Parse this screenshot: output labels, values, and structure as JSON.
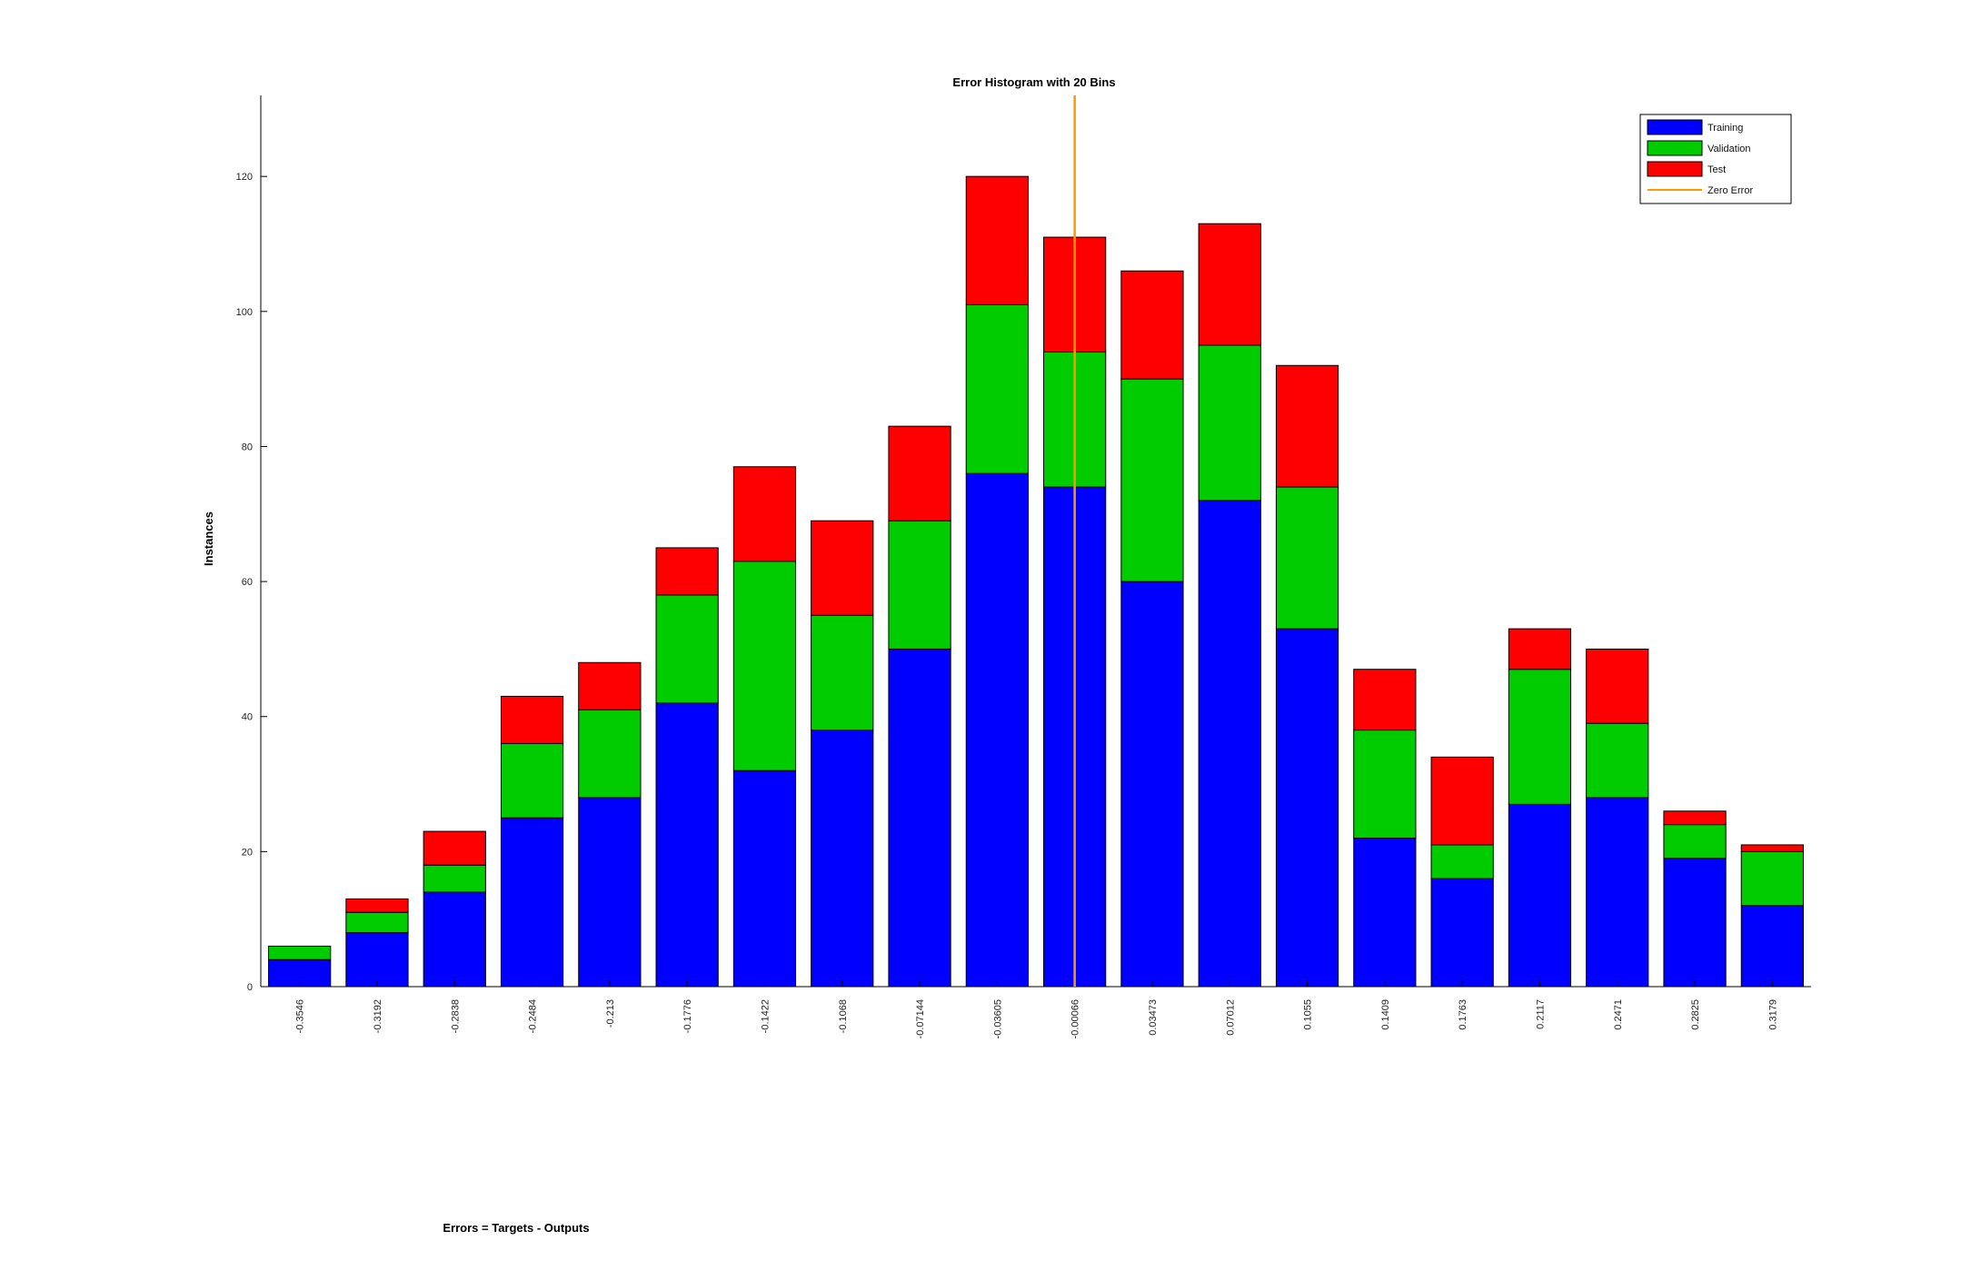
{
  "chart_data": {
    "type": "bar",
    "stacked": true,
    "title": "Error Histogram with 20 Bins",
    "xlabel": "Errors = Targets - Outputs",
    "ylabel": "Instances",
    "ylim": [
      0,
      132
    ],
    "yticks": [
      0,
      20,
      40,
      60,
      80,
      100,
      120
    ],
    "categories": [
      "-0.3546",
      "-0.3192",
      "-0.2838",
      "-0.2484",
      "-0.213",
      "-0.1776",
      "-0.1422",
      "-0.1068",
      "-0.07144",
      "-0.03605",
      "-0.00066",
      "0.03473",
      "0.07012",
      "0.1055",
      "0.1409",
      "0.1763",
      "0.2117",
      "0.2471",
      "0.2825",
      "0.3179"
    ],
    "series": [
      {
        "name": "Training",
        "color": "#0000ff",
        "values": [
          4,
          8,
          14,
          25,
          28,
          42,
          32,
          38,
          50,
          76,
          74,
          60,
          72,
          53,
          22,
          16,
          27,
          28,
          19,
          12
        ]
      },
      {
        "name": "Validation",
        "color": "#00cc00",
        "values": [
          2,
          3,
          4,
          11,
          13,
          16,
          31,
          17,
          19,
          25,
          20,
          30,
          23,
          21,
          16,
          5,
          20,
          11,
          5,
          8
        ]
      },
      {
        "name": "Test",
        "color": "#ff0000",
        "values": [
          0,
          2,
          5,
          7,
          7,
          7,
          14,
          14,
          14,
          19,
          17,
          16,
          18,
          18,
          9,
          13,
          6,
          11,
          2,
          1
        ]
      }
    ],
    "zero_error": {
      "name": "Zero Error",
      "color": "#ff9900",
      "x_category": "-0.00066"
    },
    "legend": {
      "position": "top-right"
    },
    "grid": false
  }
}
